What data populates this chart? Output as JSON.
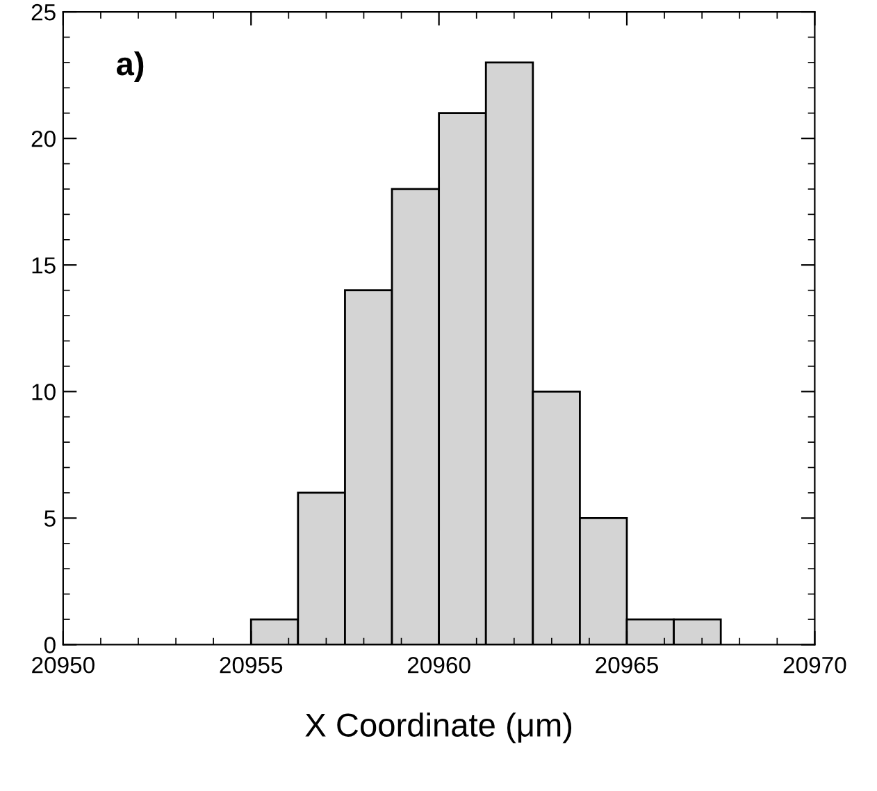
{
  "chart_data": {
    "type": "histogram",
    "xlabel": "X Coordinate (μm)",
    "bins": [
      20955,
      20956.25,
      20957.5,
      20958.75,
      20960,
      20961.25,
      20962.5,
      20963.75,
      20965,
      20966.25,
      20967.5
    ],
    "values": [
      1,
      6,
      14,
      18,
      21,
      23,
      10,
      5,
      1,
      1
    ],
    "color": "#d4d4d4",
    "xlim": [
      20950,
      20970
    ],
    "xticks": [
      20950,
      20955,
      20960,
      20965,
      20970
    ],
    "ylim": [
      0,
      25
    ],
    "yticks": [
      0,
      5,
      10,
      15,
      20,
      25
    ],
    "annotations": [
      "a)"
    ],
    "grid": false
  }
}
